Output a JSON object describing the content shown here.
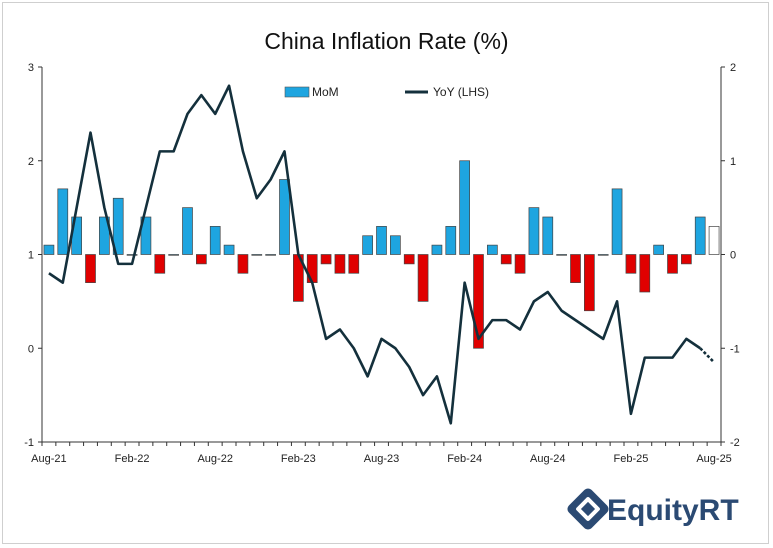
{
  "chart_data": {
    "type": "bar+line",
    "title": "China Inflation Rate (%)",
    "x_labels": [
      "Aug-21",
      "Feb-22",
      "Aug-22",
      "Feb-23",
      "Aug-23",
      "Feb-24",
      "Aug-24",
      "Feb-25",
      "Aug-25"
    ],
    "x_label_indices": [
      0,
      6,
      12,
      18,
      24,
      30,
      36,
      42,
      48
    ],
    "left_axis": {
      "ticks": [
        -1,
        0,
        1,
        2,
        3
      ],
      "range": [
        -1,
        3
      ]
    },
    "right_axis": {
      "ticks": [
        -2,
        -1,
        0,
        1,
        2
      ],
      "range": [
        -2,
        2
      ]
    },
    "series": [
      {
        "name": "MoM",
        "type": "bar",
        "axis": "right",
        "color_positive": "#1ea5e0",
        "color_negative": "#e00000",
        "color_last": "#ffffff",
        "values": [
          0.1,
          0.7,
          0.4,
          -0.3,
          0.4,
          0.6,
          0.0,
          0.4,
          -0.2,
          0.0,
          0.5,
          -0.1,
          0.3,
          0.1,
          -0.2,
          0.0,
          0.0,
          0.8,
          -0.5,
          -0.3,
          -0.1,
          -0.2,
          -0.2,
          0.2,
          0.3,
          0.2,
          -0.1,
          -0.5,
          0.1,
          0.3,
          1.0,
          -1.0,
          0.1,
          -0.1,
          -0.2,
          0.5,
          0.4,
          0.0,
          -0.3,
          -0.6,
          0.0,
          0.7,
          -0.2,
          -0.4,
          0.1,
          -0.2,
          -0.1,
          0.4,
          0.3
        ]
      },
      {
        "name": "YoY (LHS)",
        "type": "line",
        "axis": "left",
        "color": "#14303c",
        "values": [
          0.8,
          0.7,
          1.5,
          2.3,
          1.5,
          0.9,
          0.9,
          1.5,
          2.1,
          2.1,
          2.5,
          2.7,
          2.5,
          2.8,
          2.1,
          1.6,
          1.8,
          2.1,
          1.0,
          0.7,
          0.1,
          0.2,
          0.0,
          -0.3,
          0.1,
          0.0,
          -0.2,
          -0.5,
          -0.3,
          -0.8,
          0.7,
          0.1,
          0.3,
          0.3,
          0.2,
          0.5,
          0.6,
          0.4,
          0.3,
          0.2,
          0.1,
          0.5,
          -0.7,
          -0.1,
          -0.1,
          -0.1,
          0.1,
          0.0,
          -0.15
        ]
      }
    ],
    "legend": {
      "position": "top-center",
      "entries": [
        "MoM",
        "YoY (LHS)"
      ]
    }
  },
  "branding": {
    "logo_text": "EquityRT",
    "logo_color": "#2b4a73"
  }
}
